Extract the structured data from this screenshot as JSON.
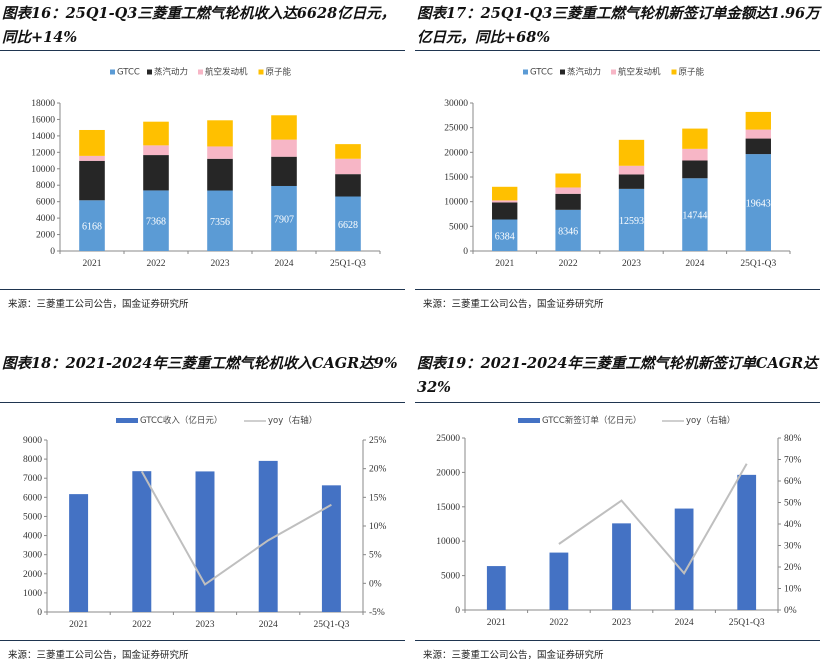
{
  "colors": {
    "gtcc": "#5b9bd5",
    "steam": "#262626",
    "aero": "#f7b6c6",
    "nuclear": "#ffc000",
    "bar": "#4472c4",
    "line": "#bfbfbf",
    "rule": "#1f3550"
  },
  "chart_data": [
    {
      "type": "bar",
      "stacked": true,
      "title": "图表16：25Q1-Q3三菱重工燃气轮机收入达6628亿日元，同比+14%",
      "categories": [
        "2021",
        "2022",
        "2023",
        "2024",
        "25Q1-Q3"
      ],
      "ylim": [
        0,
        18000
      ],
      "yticks": [
        0,
        2000,
        4000,
        6000,
        8000,
        10000,
        12000,
        14000,
        16000,
        18000
      ],
      "legend": "top",
      "series": [
        {
          "name": "GTCC",
          "values": [
            6168,
            7368,
            7356,
            7907,
            6628
          ],
          "labels": [
            "6168",
            "7368",
            "7356",
            "7907",
            "6628"
          ]
        },
        {
          "name": "蒸汽动力",
          "values": [
            4800,
            4300,
            3860,
            3560,
            2720
          ]
        },
        {
          "name": "航空发动机",
          "values": [
            600,
            1180,
            1500,
            2080,
            1870
          ]
        },
        {
          "name": "原子能",
          "values": [
            3150,
            2880,
            3180,
            2960,
            1780
          ]
        }
      ],
      "source": "来源：三菱重工公司公告，国金证券研究所"
    },
    {
      "type": "bar",
      "stacked": true,
      "title": "图表17：25Q1-Q3三菱重工燃气轮机新签订单金额达1.96万亿日元，同比+68%",
      "categories": [
        "2021",
        "2022",
        "2023",
        "2024",
        "25Q1-Q3"
      ],
      "ylim": [
        0,
        30000
      ],
      "yticks": [
        0,
        5000,
        10000,
        15000,
        20000,
        25000,
        30000
      ],
      "legend": "top",
      "series": [
        {
          "name": "GTCC",
          "values": [
            6384,
            8346,
            12593,
            14744,
            19643
          ],
          "labels": [
            "6384",
            "8346",
            "12593",
            "14744",
            "19643"
          ]
        },
        {
          "name": "蒸汽动力",
          "values": [
            3460,
            3250,
            2920,
            3600,
            3150
          ]
        },
        {
          "name": "航空发动机",
          "values": [
            410,
            1280,
            1760,
            2360,
            1820
          ]
        },
        {
          "name": "原子能",
          "values": [
            2760,
            2830,
            5260,
            4110,
            3580
          ]
        }
      ],
      "source": "来源：三菱重工公司公告，国金证券研究所"
    },
    {
      "type": "bar+line",
      "title": "图表18：2021-2024年三菱重工燃气轮机收入CAGR达9%",
      "categories": [
        "2021",
        "2022",
        "2023",
        "2024",
        "25Q1-Q3"
      ],
      "ylim": [
        0,
        9000
      ],
      "yticks": [
        0,
        1000,
        2000,
        3000,
        4000,
        5000,
        6000,
        7000,
        8000,
        9000
      ],
      "y2lim": [
        -5,
        25
      ],
      "y2ticks": [
        "-5%",
        "0%",
        "5%",
        "10%",
        "15%",
        "20%",
        "25%"
      ],
      "legend": "top",
      "series": [
        {
          "name": "GTCC收入（亿日元）",
          "values": [
            6168,
            7368,
            7356,
            7907,
            6628
          ]
        },
        {
          "name": "yoy（右轴）",
          "axis": "right",
          "values": [
            null,
            19.5,
            -0.2,
            7.5,
            13.7
          ]
        }
      ],
      "source": "来源：三菱重工公司公告，国金证券研究所"
    },
    {
      "type": "bar+line",
      "title": "图表19：2021-2024年三菱重工燃气轮机新签订单CAGR达32%",
      "categories": [
        "2021",
        "2022",
        "2023",
        "2024",
        "25Q1-Q3"
      ],
      "ylim": [
        0,
        25000
      ],
      "yticks": [
        0,
        5000,
        10000,
        15000,
        20000,
        25000
      ],
      "y2lim": [
        0,
        80
      ],
      "y2ticks": [
        "0%",
        "10%",
        "20%",
        "30%",
        "40%",
        "50%",
        "60%",
        "70%",
        "80%"
      ],
      "legend": "top",
      "series": [
        {
          "name": "GTCC新签订单（亿日元）",
          "values": [
            6384,
            8346,
            12593,
            14744,
            19643
          ]
        },
        {
          "name": "yoy（右轴）",
          "axis": "right",
          "values": [
            null,
            30.7,
            50.9,
            17.1,
            68.0
          ]
        }
      ],
      "source": "来源：三菱重工公司公告，国金证券研究所"
    }
  ]
}
